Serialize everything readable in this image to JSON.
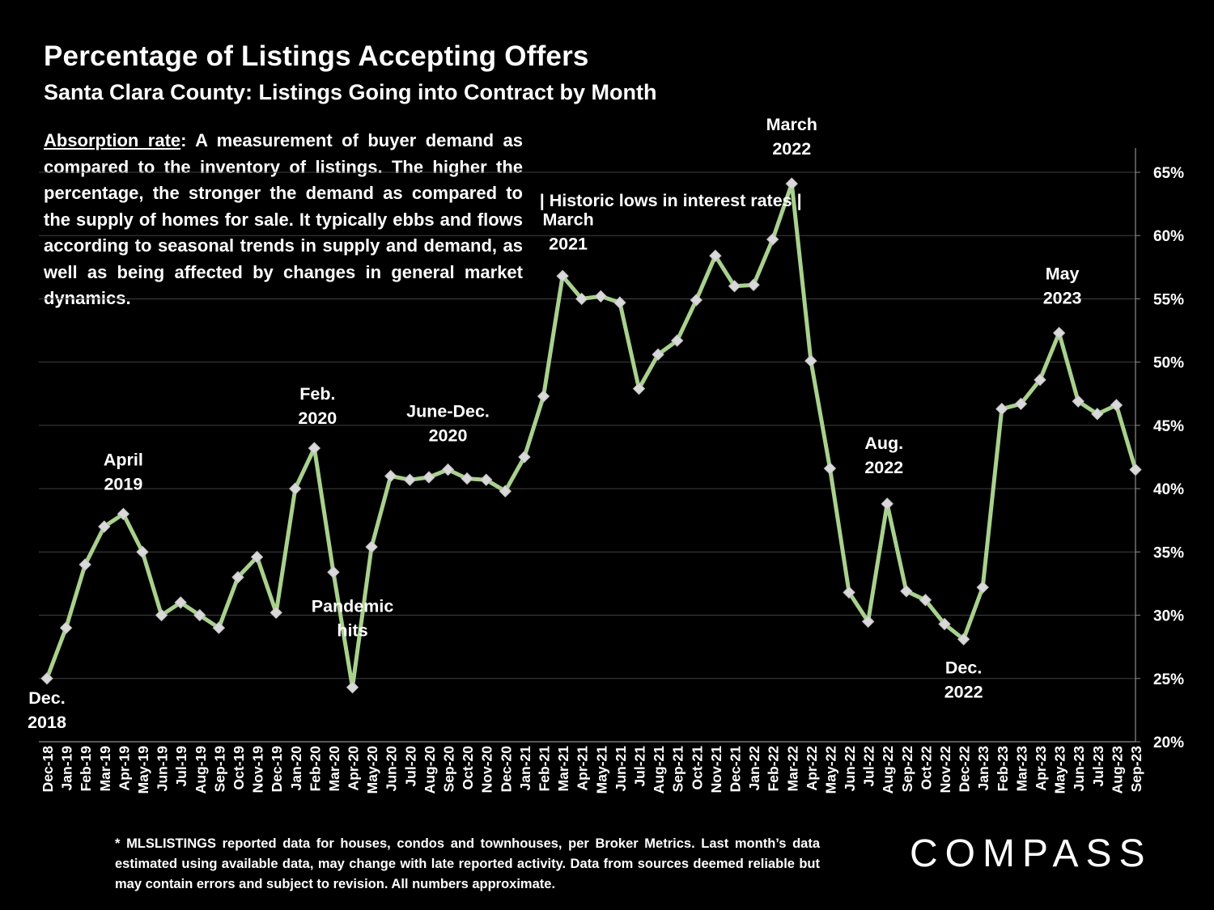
{
  "header": {
    "title": "Percentage of Listings Accepting Offers",
    "subtitle": "Santa Clara County: Listings Going into Contract by Month"
  },
  "description": {
    "term": "Absorption rate",
    "text": ":  A measurement of buyer demand as compared to the inventory of listings. The higher the percentage, the stronger the demand as compared to the supply of homes for sale. It typically ebbs and flows according to seasonal trends in supply and demand, as well as being affected by changes in general market dynamics."
  },
  "footnote": "* MLSLISTINGS reported data for houses, condos and townhouses, per Broker Metrics. Last month’s data estimated using available data, may change with late reported activity. Data from sources deemed reliable but may contain errors and subject to revision. All numbers approximate.",
  "logo": "COMPASS",
  "colors": {
    "background": "#000000",
    "line": "#a9d18e",
    "marker": "#d9d9d9",
    "grid": "#404040",
    "text": "#ffffff"
  },
  "chart_data": {
    "type": "line",
    "categories": [
      "Dec-18",
      "Jan-19",
      "Feb-19",
      "Mar-19",
      "Apr-19",
      "May-19",
      "Jun-19",
      "Jul-19",
      "Aug-19",
      "Sep-19",
      "Oct-19",
      "Nov-19",
      "Dec-19",
      "Jan-20",
      "Feb-20",
      "Mar-20",
      "Apr-20",
      "May-20",
      "Jun-20",
      "Jul-20",
      "Aug-20",
      "Sep-20",
      "Oct-20",
      "Nov-20",
      "Dec-20",
      "Jan-21",
      "Feb-21",
      "Mar-21",
      "Apr-21",
      "May-21",
      "Jun-21",
      "Jul-21",
      "Aug-21",
      "Sep-21",
      "Oct-21",
      "Nov-21",
      "Dec-21",
      "Jan-22",
      "Feb-22",
      "Mar-22",
      "Apr-22",
      "May-22",
      "Jun-22",
      "Jul-22",
      "Aug-22",
      "Sep-22",
      "Oct-22",
      "Nov-22",
      "Dec-22",
      "Jan-23",
      "Feb-23",
      "Mar-23",
      "Apr-23",
      "May-23",
      "Jun-23",
      "Jul-23",
      "Aug-23",
      "Sep-23"
    ],
    "series": [
      {
        "values": [
          25.0,
          29.0,
          34.0,
          37.0,
          38.0,
          35.0,
          30.0,
          31.0,
          30.0,
          29.0,
          33.0,
          34.6,
          30.2,
          40.0,
          43.2,
          33.4,
          24.3,
          35.4,
          41.0,
          40.7,
          40.9,
          41.5,
          40.8,
          40.7,
          39.8,
          42.5,
          47.3,
          56.8,
          55.0,
          55.2,
          54.7,
          47.9,
          50.6,
          51.7,
          54.9,
          58.4,
          56.0,
          56.1,
          59.7,
          64.1,
          50.1,
          41.6,
          31.8,
          29.5,
          38.8,
          31.9,
          31.2,
          29.3,
          28.1,
          32.2,
          46.3,
          46.7,
          48.6,
          52.3,
          46.9,
          45.9,
          46.6,
          41.5
        ]
      }
    ],
    "ylim": [
      20,
      65
    ],
    "yticks": [
      "20%",
      "25%",
      "30%",
      "35%",
      "40%",
      "45%",
      "50%",
      "55%",
      "60%",
      "65%"
    ],
    "y_axis_position": "right",
    "grid": true,
    "annotations": [
      {
        "lines": [
          "Dec.",
          "2018"
        ],
        "at": "Dec-18"
      },
      {
        "lines": [
          "April",
          "2019"
        ],
        "at": "Apr-19"
      },
      {
        "lines": [
          "Feb.",
          "2020"
        ],
        "at": "Feb-20"
      },
      {
        "lines": [
          "Pandemic",
          "hits"
        ],
        "at": "Apr-20"
      },
      {
        "lines": [
          "June-Dec.",
          "2020"
        ],
        "at": "Sep-20"
      },
      {
        "lines": [
          "March",
          "2021"
        ],
        "at": "Mar-21"
      },
      {
        "lines": [
          "| Historic lows in interest rates |"
        ],
        "at": "Sep-21"
      },
      {
        "lines": [
          "March",
          "2022"
        ],
        "at": "Mar-22"
      },
      {
        "lines": [
          "Aug.",
          "2022"
        ],
        "at": "Aug-22"
      },
      {
        "lines": [
          "Dec.",
          "2022"
        ],
        "at": "Dec-22"
      },
      {
        "lines": [
          "May",
          "2023"
        ],
        "at": "May-23"
      }
    ]
  }
}
